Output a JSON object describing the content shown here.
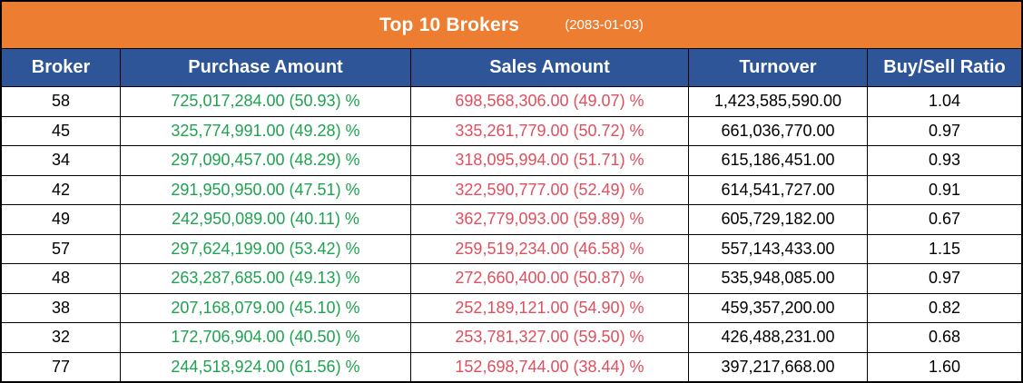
{
  "table": {
    "title": "Top 10 Brokers",
    "date": "(2083-01-03)",
    "columns": [
      {
        "label": "Broker"
      },
      {
        "label": "Purchase Amount"
      },
      {
        "label": "Sales Amount"
      },
      {
        "label": "Turnover"
      },
      {
        "label": "Buy/Sell Ratio"
      }
    ],
    "rows": [
      {
        "broker": "58",
        "purchase": "725,017,284.00 (50.93) %",
        "sales": "698,568,306.00 (49.07) %",
        "turnover": "1,423,585,590.00",
        "ratio": "1.04"
      },
      {
        "broker": "45",
        "purchase": "325,774,991.00 (49.28) %",
        "sales": "335,261,779.00 (50.72) %",
        "turnover": "661,036,770.00",
        "ratio": "0.97"
      },
      {
        "broker": "34",
        "purchase": "297,090,457.00 (48.29) %",
        "sales": "318,095,994.00 (51.71) %",
        "turnover": "615,186,451.00",
        "ratio": "0.93"
      },
      {
        "broker": "42",
        "purchase": "291,950,950.00 (47.51) %",
        "sales": "322,590,777.00 (52.49) %",
        "turnover": "614,541,727.00",
        "ratio": "0.91"
      },
      {
        "broker": "49",
        "purchase": "242,950,089.00 (40.11) %",
        "sales": "362,779,093.00 (59.89) %",
        "turnover": "605,729,182.00",
        "ratio": "0.67"
      },
      {
        "broker": "57",
        "purchase": "297,624,199.00 (53.42) %",
        "sales": "259,519,234.00 (46.58) %",
        "turnover": "557,143,433.00",
        "ratio": "1.15"
      },
      {
        "broker": "48",
        "purchase": "263,287,685.00 (49.13) %",
        "sales": "272,660,400.00 (50.87) %",
        "turnover": "535,948,085.00",
        "ratio": "0.97"
      },
      {
        "broker": "38",
        "purchase": "207,168,079.00 (45.10) %",
        "sales": "252,189,121.00 (54.90) %",
        "turnover": "459,357,200.00",
        "ratio": "0.82"
      },
      {
        "broker": "32",
        "purchase": "172,706,904.00 (40.50) %",
        "sales": "253,781,327.00 (59.50) %",
        "turnover": "426,488,231.00",
        "ratio": "0.68"
      },
      {
        "broker": "77",
        "purchase": "244,518,924.00 (61.56) %",
        "sales": "152,698,744.00 (38.44) %",
        "turnover": "397,217,668.00",
        "ratio": "1.60"
      }
    ]
  },
  "colors": {
    "title_bar_bg": "#ED7D31",
    "column_header_bg": "#2E5597",
    "purchase_green": "#1EA350",
    "sales_red": "#DF4F5E",
    "border": "#000000",
    "row_bg": "#FFFFFF",
    "header_text": "#FFFFFF",
    "body_text": "#000000"
  },
  "chart_data": {
    "type": "table",
    "title": "Top 10 Brokers",
    "subtitle": "(2083-01-03)",
    "columns": [
      "Broker",
      "Purchase Amount",
      "Sales Amount",
      "Turnover",
      "Buy/Sell Ratio"
    ],
    "rows": [
      {
        "broker": 58,
        "purchase_amount": 725017284.0,
        "purchase_pct": 50.93,
        "sales_amount": 698568306.0,
        "sales_pct": 49.07,
        "turnover": 1423585590.0,
        "buy_sell_ratio": 1.04
      },
      {
        "broker": 45,
        "purchase_amount": 325774991.0,
        "purchase_pct": 49.28,
        "sales_amount": 335261779.0,
        "sales_pct": 50.72,
        "turnover": 661036770.0,
        "buy_sell_ratio": 0.97
      },
      {
        "broker": 34,
        "purchase_amount": 297090457.0,
        "purchase_pct": 48.29,
        "sales_amount": 318095994.0,
        "sales_pct": 51.71,
        "turnover": 615186451.0,
        "buy_sell_ratio": 0.93
      },
      {
        "broker": 42,
        "purchase_amount": 291950950.0,
        "purchase_pct": 47.51,
        "sales_amount": 322590777.0,
        "sales_pct": 52.49,
        "turnover": 614541727.0,
        "buy_sell_ratio": 0.91
      },
      {
        "broker": 49,
        "purchase_amount": 242950089.0,
        "purchase_pct": 40.11,
        "sales_amount": 362779093.0,
        "sales_pct": 59.89,
        "turnover": 605729182.0,
        "buy_sell_ratio": 0.67
      },
      {
        "broker": 57,
        "purchase_amount": 297624199.0,
        "purchase_pct": 53.42,
        "sales_amount": 259519234.0,
        "sales_pct": 46.58,
        "turnover": 557143433.0,
        "buy_sell_ratio": 1.15
      },
      {
        "broker": 48,
        "purchase_amount": 263287685.0,
        "purchase_pct": 49.13,
        "sales_amount": 272660400.0,
        "sales_pct": 50.87,
        "turnover": 535948085.0,
        "buy_sell_ratio": 0.97
      },
      {
        "broker": 38,
        "purchase_amount": 207168079.0,
        "purchase_pct": 45.1,
        "sales_amount": 252189121.0,
        "sales_pct": 54.9,
        "turnover": 459357200.0,
        "buy_sell_ratio": 0.82
      },
      {
        "broker": 32,
        "purchase_amount": 172706904.0,
        "purchase_pct": 40.5,
        "sales_amount": 253781327.0,
        "sales_pct": 59.5,
        "turnover": 426488231.0,
        "buy_sell_ratio": 0.68
      },
      {
        "broker": 77,
        "purchase_amount": 244518924.0,
        "purchase_pct": 61.56,
        "sales_amount": 152698744.0,
        "sales_pct": 38.44,
        "turnover": 397217668.0,
        "buy_sell_ratio": 1.6
      }
    ]
  }
}
